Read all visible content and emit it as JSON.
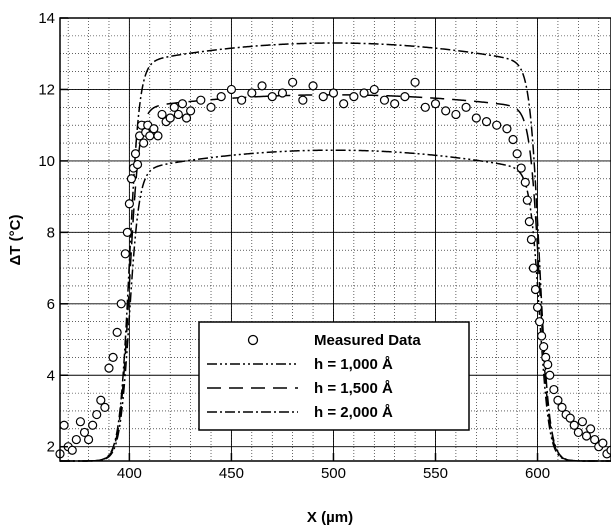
{
  "chart_data": {
    "type": "scatter",
    "title": "",
    "xlabel": "X  (µm)",
    "ylabel": "ΔT (°C)",
    "xlim": [
      366,
      636
    ],
    "ylim": [
      1.6,
      14
    ],
    "x_ticks": [
      400,
      450,
      500,
      550,
      600
    ],
    "y_ticks": [
      2,
      4,
      6,
      8,
      10,
      12,
      14
    ],
    "x_tick_labels": [
      "400",
      "450",
      "500",
      "550",
      "600"
    ],
    "y_tick_labels": [
      "2",
      "4",
      "6",
      "8",
      "10",
      "12",
      "14"
    ],
    "grid": true,
    "legend_position": "bottom-center",
    "series": [
      {
        "name": "Measured Data",
        "kind": "scatter",
        "marker": "open-circle",
        "x": [
          366,
          368,
          370,
          372,
          374,
          376,
          378,
          380,
          382,
          384,
          386,
          388,
          390,
          392,
          394,
          396,
          398,
          399,
          400,
          401,
          402,
          403,
          404,
          405,
          406,
          407,
          408,
          409,
          410,
          412,
          414,
          416,
          418,
          420,
          422,
          424,
          426,
          428,
          430,
          435,
          440,
          445,
          450,
          455,
          460,
          465,
          470,
          475,
          480,
          485,
          490,
          495,
          500,
          505,
          510,
          515,
          520,
          525,
          530,
          535,
          540,
          545,
          550,
          555,
          560,
          565,
          570,
          575,
          580,
          585,
          588,
          590,
          592,
          594,
          595,
          596,
          597,
          598,
          599,
          600,
          601,
          602,
          603,
          604,
          605,
          606,
          608,
          610,
          612,
          614,
          616,
          618,
          620,
          622,
          624,
          626,
          628,
          630,
          632,
          634,
          636
        ],
        "y": [
          1.8,
          2.6,
          2.0,
          1.9,
          2.2,
          2.7,
          2.4,
          2.2,
          2.6,
          2.9,
          3.3,
          3.1,
          4.2,
          4.5,
          5.2,
          6.0,
          7.4,
          8.0,
          8.8,
          9.5,
          9.8,
          10.2,
          9.9,
          10.7,
          11.0,
          10.5,
          10.8,
          11.0,
          10.7,
          10.9,
          10.7,
          11.3,
          11.1,
          11.2,
          11.5,
          11.3,
          11.6,
          11.2,
          11.4,
          11.7,
          11.5,
          11.8,
          12.0,
          11.7,
          11.9,
          12.1,
          11.8,
          11.9,
          12.2,
          11.7,
          12.1,
          11.8,
          11.9,
          11.6,
          11.8,
          11.9,
          12.0,
          11.7,
          11.6,
          11.8,
          12.2,
          11.5,
          11.6,
          11.4,
          11.3,
          11.5,
          11.2,
          11.1,
          11.0,
          10.9,
          10.6,
          10.2,
          9.8,
          9.4,
          8.9,
          8.3,
          7.8,
          7.0,
          6.4,
          5.9,
          5.5,
          5.1,
          4.8,
          4.5,
          4.3,
          4.0,
          3.6,
          3.3,
          3.1,
          2.9,
          2.8,
          2.6,
          2.4,
          2.7,
          2.3,
          2.5,
          2.2,
          2.0,
          2.1,
          1.8,
          1.9
        ]
      },
      {
        "name": "h = 1,000 Å",
        "kind": "line",
        "dash": "dash-dot-dot",
        "plateau": 10.3,
        "base": 1.6,
        "left_center": 400,
        "right_center": 601,
        "curvature": 8
      },
      {
        "name": "h = 1,500 Å",
        "kind": "line",
        "dash": "long-dash",
        "plateau": 11.85,
        "base": 1.6,
        "left_center": 400,
        "right_center": 601,
        "curvature": 4.5
      },
      {
        "name": "h = 2,000 Å",
        "kind": "line",
        "dash": "dash-dot",
        "plateau": 13.3,
        "base": 1.6,
        "left_center": 400,
        "right_center": 601,
        "curvature": 6
      }
    ]
  }
}
